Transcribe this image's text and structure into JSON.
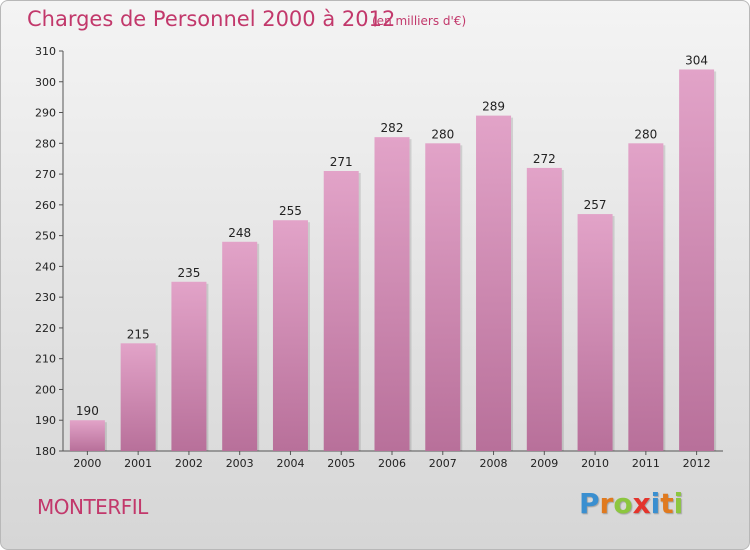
{
  "header": {
    "title": "Charges de Personnel 2000 à 2012",
    "unit_note": "(en milliers d'€)"
  },
  "footer": {
    "commune": "MONTERFIL",
    "logo_letters": [
      {
        "char": "P",
        "color": "#3a8fd0"
      },
      {
        "char": "r",
        "color": "#e07a1f"
      },
      {
        "char": "o",
        "color": "#8cc63f"
      },
      {
        "char": "x",
        "color": "#e4342c"
      },
      {
        "char": "i",
        "color": "#3a8fd0"
      },
      {
        "char": "t",
        "color": "#e07a1f"
      },
      {
        "char": "i",
        "color": "#8cc63f"
      }
    ]
  },
  "colors": {
    "bar_top": "#e2a3c8",
    "bar_bottom": "#b8709a",
    "accent": "#c2386b"
  },
  "chart_data": {
    "type": "bar",
    "title": "Charges de Personnel 2000 à 2012",
    "subtitle": "(en milliers d'€)",
    "xlabel": "",
    "ylabel": "",
    "categories": [
      "2000",
      "2001",
      "2002",
      "2003",
      "2004",
      "2005",
      "2006",
      "2007",
      "2008",
      "2009",
      "2010",
      "2011",
      "2012"
    ],
    "values": [
      190,
      215,
      235,
      248,
      255,
      271,
      282,
      280,
      289,
      272,
      257,
      280,
      304
    ],
    "ylim": [
      180,
      310
    ],
    "yticks": [
      180,
      190,
      200,
      210,
      220,
      230,
      240,
      250,
      260,
      270,
      280,
      290,
      300,
      310
    ],
    "grid": false,
    "legend": "none"
  }
}
